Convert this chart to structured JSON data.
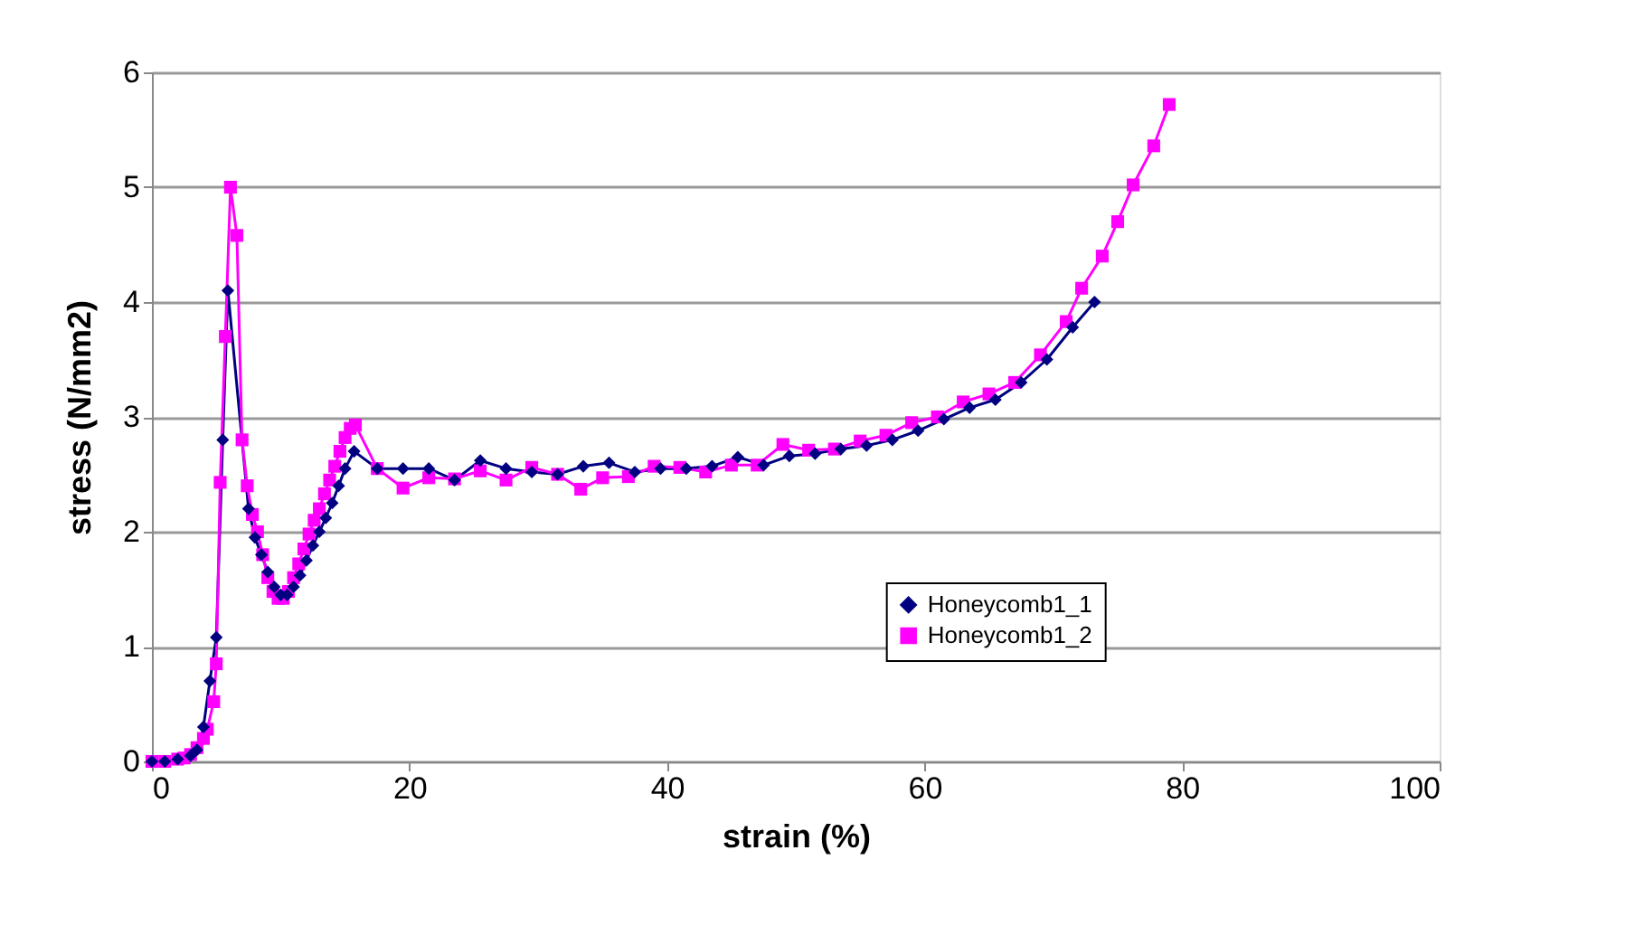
{
  "chart_data": {
    "type": "line",
    "xlabel": "strain (%)",
    "ylabel": "stress (N/mm2)",
    "xlim": [
      0,
      100
    ],
    "xticks": [
      0,
      20,
      40,
      60,
      80,
      100
    ],
    "ylim": [
      0,
      6
    ],
    "yticks": [
      0,
      1,
      2,
      3,
      4,
      5,
      6
    ],
    "grid": "y",
    "legend": "right",
    "series": [
      {
        "name": "Honeycomb1_1",
        "color": "#000080",
        "marker": "diamond",
        "x": [
          0,
          1,
          2,
          3,
          3.5,
          4,
          4.5,
          5,
          5.5,
          5.9,
          7.5,
          8,
          8.5,
          9,
          9.5,
          10,
          10.5,
          11,
          11.5,
          12,
          12.5,
          13,
          13.5,
          14,
          14.5,
          15,
          15.7,
          17.5,
          19.5,
          21.5,
          23.5,
          25.5,
          27.5,
          29.5,
          31.5,
          33.5,
          35.5,
          37.5,
          39.5,
          41.5,
          43.5,
          45.5,
          47.5,
          49.5,
          51.5,
          53.5,
          55.5,
          57.5,
          59.5,
          61.5,
          63.5,
          65.5,
          67.5,
          69.5,
          71.5,
          73.2
        ],
        "values": [
          0,
          0,
          0.02,
          0.05,
          0.1,
          0.3,
          0.7,
          1.08,
          2.8,
          4.1,
          2.2,
          1.95,
          1.8,
          1.65,
          1.52,
          1.45,
          1.45,
          1.52,
          1.62,
          1.75,
          1.88,
          2.0,
          2.12,
          2.25,
          2.4,
          2.55,
          2.7,
          2.55,
          2.55,
          2.55,
          2.45,
          2.62,
          2.55,
          2.52,
          2.5,
          2.57,
          2.6,
          2.52,
          2.55,
          2.55,
          2.57,
          2.65,
          2.58,
          2.66,
          2.68,
          2.72,
          2.75,
          2.8,
          2.88,
          2.98,
          3.08,
          3.15,
          3.3,
          3.5,
          3.78,
          4.0
        ]
      },
      {
        "name": "Honeycomb1_2",
        "color": "#ff00ff",
        "marker": "square",
        "x": [
          0,
          1,
          2,
          2.5,
          3,
          3.5,
          4,
          4.3,
          4.8,
          5,
          5.3,
          5.7,
          6.1,
          6.6,
          7,
          7.4,
          7.8,
          8.2,
          8.6,
          9,
          9.4,
          9.8,
          10.2,
          10.6,
          11,
          11.4,
          11.8,
          12.2,
          12.6,
          13,
          13.4,
          13.8,
          14.2,
          14.6,
          15,
          15.4,
          15.8,
          17.5,
          19.5,
          21.5,
          23.5,
          25.5,
          27.5,
          29.5,
          31.5,
          33.3,
          35,
          37,
          39,
          41,
          43,
          45,
          47,
          49,
          51,
          53,
          55,
          57,
          59,
          61,
          63,
          65,
          67,
          69,
          71,
          72.2,
          73.8,
          75,
          76.2,
          77.8,
          79
        ],
        "values": [
          0,
          0,
          0.02,
          0.03,
          0.06,
          0.12,
          0.2,
          0.28,
          0.52,
          0.85,
          2.43,
          3.7,
          5.0,
          4.58,
          2.8,
          2.4,
          2.15,
          2.0,
          1.8,
          1.6,
          1.48,
          1.42,
          1.42,
          1.48,
          1.6,
          1.72,
          1.85,
          1.98,
          2.1,
          2.2,
          2.33,
          2.45,
          2.57,
          2.7,
          2.82,
          2.9,
          2.93,
          2.55,
          2.38,
          2.47,
          2.46,
          2.53,
          2.45,
          2.56,
          2.5,
          2.37,
          2.47,
          2.48,
          2.57,
          2.56,
          2.52,
          2.58,
          2.58,
          2.76,
          2.71,
          2.72,
          2.79,
          2.84,
          2.95,
          3.0,
          3.13,
          3.2,
          3.3,
          3.54,
          3.83,
          4.12,
          4.4,
          4.7,
          5.02,
          5.36,
          5.72
        ]
      }
    ]
  }
}
